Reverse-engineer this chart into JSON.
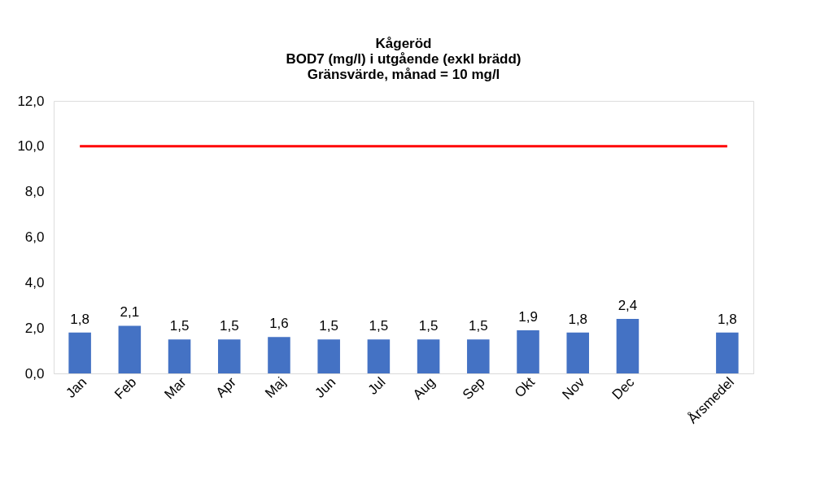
{
  "chart_data": {
    "type": "bar",
    "title": [
      "Kågeröd",
      "BOD7 (mg/l) i utgående (exkl brädd)",
      "Gränsvärde,  månad = 10 mg/l"
    ],
    "categories": [
      "Jan",
      "Feb",
      "Mar",
      "Apr",
      "Maj",
      "Jun",
      "Jul",
      "Aug",
      "Sep",
      "Okt",
      "Nov",
      "Dec",
      null,
      "Årsmedel"
    ],
    "values": [
      1.8,
      2.1,
      1.5,
      1.5,
      1.6,
      1.5,
      1.5,
      1.5,
      1.5,
      1.9,
      1.8,
      2.4,
      null,
      1.8
    ],
    "value_labels": [
      "1,8",
      "2,1",
      "1,5",
      "1,5",
      "1,6",
      "1,5",
      "1,5",
      "1,5",
      "1,5",
      "1,9",
      "1,8",
      "2,4",
      null,
      "1,8"
    ],
    "color": "#4472c4",
    "ylim": [
      0,
      12
    ],
    "yticks": [
      {
        "value": 0,
        "label": "0,0"
      },
      {
        "value": 2,
        "label": "2,0"
      },
      {
        "value": 4,
        "label": "4,0"
      },
      {
        "value": 6,
        "label": "6,0"
      },
      {
        "value": 8,
        "label": "8,0"
      },
      {
        "value": 10,
        "label": "10,0"
      },
      {
        "value": 12,
        "label": "12,0"
      }
    ],
    "ref_lines": [
      {
        "axis": "y",
        "value": 10,
        "label": null,
        "color": "#ff0000"
      }
    ],
    "grid": false
  }
}
